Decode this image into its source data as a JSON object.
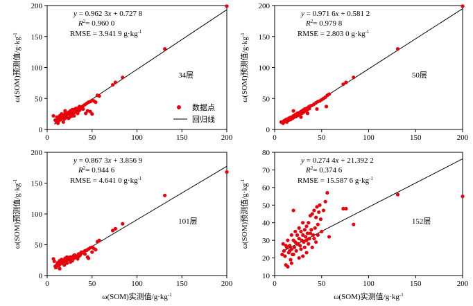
{
  "chart_data": [
    {
      "type": "scatter",
      "equation": "y = 0.962 3x + 0.727 8",
      "r2": "R2= 0.960 0",
      "rmse": "RMSE = 3.941 9 g·kg-1",
      "layer_label": "34层",
      "ylabel": "ω(SOM)预测值/g·kg-1",
      "xlabel": "",
      "xlim": [
        0,
        200
      ],
      "ylim": [
        0,
        200
      ],
      "xticks": [
        "0",
        "50",
        "100",
        "150",
        "200"
      ],
      "yticks": [
        "0",
        "50",
        "100",
        "150",
        "200"
      ],
      "legend": {
        "points": "数据点",
        "line": "回归线"
      },
      "fit": {
        "slope": 0.9623,
        "intercept": 0.7278
      },
      "points": [
        [
          7,
          22
        ],
        [
          9,
          15
        ],
        [
          10,
          13
        ],
        [
          11,
          20
        ],
        [
          12,
          18
        ],
        [
          13,
          14
        ],
        [
          14,
          22
        ],
        [
          15,
          16
        ],
        [
          16,
          25
        ],
        [
          17,
          20
        ],
        [
          18,
          23
        ],
        [
          19,
          17
        ],
        [
          20,
          27
        ],
        [
          21,
          22
        ],
        [
          22,
          19
        ],
        [
          23,
          26
        ],
        [
          24,
          28
        ],
        [
          25,
          24
        ],
        [
          26,
          30
        ],
        [
          27,
          25
        ],
        [
          28,
          22
        ],
        [
          29,
          31
        ],
        [
          30,
          27
        ],
        [
          31,
          33
        ],
        [
          32,
          29
        ],
        [
          33,
          30
        ],
        [
          34,
          26
        ],
        [
          35,
          35
        ],
        [
          36,
          31
        ],
        [
          37,
          33
        ],
        [
          38,
          36
        ],
        [
          40,
          38
        ],
        [
          42,
          40
        ],
        [
          44,
          42
        ],
        [
          45,
          30
        ],
        [
          46,
          44
        ],
        [
          48,
          45
        ],
        [
          50,
          47
        ],
        [
          52,
          46
        ],
        [
          54,
          44
        ],
        [
          56,
          55
        ],
        [
          58,
          54
        ],
        [
          73,
          72
        ],
        [
          76,
          76
        ],
        [
          84,
          84
        ],
        [
          131,
          130
        ],
        [
          200,
          199
        ],
        [
          12,
          10
        ],
        [
          15,
          21
        ],
        [
          18,
          12
        ],
        [
          20,
          30
        ],
        [
          22,
          24
        ],
        [
          24,
          18
        ],
        [
          26,
          21
        ],
        [
          28,
          32
        ],
        [
          30,
          22
        ],
        [
          32,
          34
        ],
        [
          34,
          28
        ],
        [
          36,
          37
        ],
        [
          40,
          33
        ],
        [
          43,
          26
        ],
        [
          48,
          29
        ],
        [
          50,
          25
        ]
      ]
    },
    {
      "type": "scatter",
      "equation": "y = 0.971 6x + 0.581 2",
      "r2": "R2= 0.979 8",
      "rmse": "RMSE = 2.803 0 g·kg-1",
      "layer_label": "50层",
      "ylabel": "ω(SOM)预测值/g·kg-1",
      "xlabel": "",
      "xlim": [
        0,
        200
      ],
      "ylim": [
        0,
        200
      ],
      "xticks": [
        "0",
        "50",
        "100",
        "150",
        "200"
      ],
      "yticks": [
        "0",
        "50",
        "100",
        "150",
        "200"
      ],
      "fit": {
        "slope": 0.9716,
        "intercept": 0.5812
      },
      "points": [
        [
          7,
          12
        ],
        [
          9,
          10
        ],
        [
          10,
          14
        ],
        [
          11,
          13
        ],
        [
          12,
          16
        ],
        [
          13,
          12
        ],
        [
          14,
          17
        ],
        [
          15,
          15
        ],
        [
          16,
          19
        ],
        [
          17,
          16
        ],
        [
          18,
          20
        ],
        [
          19,
          18
        ],
        [
          20,
          22
        ],
        [
          21,
          20
        ],
        [
          22,
          24
        ],
        [
          23,
          21
        ],
        [
          24,
          26
        ],
        [
          25,
          23
        ],
        [
          26,
          27
        ],
        [
          27,
          25
        ],
        [
          28,
          29
        ],
        [
          29,
          26
        ],
        [
          30,
          31
        ],
        [
          31,
          28
        ],
        [
          32,
          33
        ],
        [
          33,
          30
        ],
        [
          34,
          34
        ],
        [
          35,
          32
        ],
        [
          36,
          36
        ],
        [
          37,
          34
        ],
        [
          38,
          38
        ],
        [
          40,
          39
        ],
        [
          42,
          41
        ],
        [
          44,
          43
        ],
        [
          46,
          45
        ],
        [
          48,
          46
        ],
        [
          50,
          48
        ],
        [
          52,
          50
        ],
        [
          54,
          52
        ],
        [
          55,
          37
        ],
        [
          56,
          55
        ],
        [
          58,
          57
        ],
        [
          73,
          73
        ],
        [
          76,
          76
        ],
        [
          84,
          84
        ],
        [
          131,
          130
        ],
        [
          200,
          199
        ],
        [
          20,
          30
        ],
        [
          28,
          20
        ],
        [
          35,
          26
        ],
        [
          45,
          33
        ]
      ]
    },
    {
      "type": "scatter",
      "equation": "y = 0.867 3x + 3.856 9",
      "r2": "R2= 0.944 6",
      "rmse": "RMSE = 4.641 0 g·kg-1",
      "layer_label": "101层",
      "ylabel": "ω(SOM)预测值/g·kg-1",
      "xlabel": "ω(SOM)实测值/g·kg-1",
      "xlim": [
        0,
        200
      ],
      "ylim": [
        0,
        200
      ],
      "xticks": [
        "0",
        "50",
        "100",
        "150",
        "200"
      ],
      "yticks": [
        "0",
        "50",
        "100",
        "150",
        "200"
      ],
      "fit": {
        "slope": 0.8673,
        "intercept": 3.8569
      },
      "points": [
        [
          7,
          27
        ],
        [
          8,
          23
        ],
        [
          9,
          15
        ],
        [
          10,
          13
        ],
        [
          11,
          18
        ],
        [
          12,
          21
        ],
        [
          13,
          16
        ],
        [
          14,
          24
        ],
        [
          15,
          19
        ],
        [
          16,
          26
        ],
        [
          17,
          21
        ],
        [
          18,
          23
        ],
        [
          19,
          17
        ],
        [
          20,
          28
        ],
        [
          21,
          23
        ],
        [
          22,
          20
        ],
        [
          23,
          27
        ],
        [
          24,
          29
        ],
        [
          25,
          25
        ],
        [
          26,
          30
        ],
        [
          27,
          26
        ],
        [
          28,
          24
        ],
        [
          29,
          31
        ],
        [
          30,
          28
        ],
        [
          31,
          33
        ],
        [
          32,
          30
        ],
        [
          33,
          31
        ],
        [
          34,
          27
        ],
        [
          35,
          35
        ],
        [
          36,
          32
        ],
        [
          37,
          34
        ],
        [
          38,
          36
        ],
        [
          40,
          38
        ],
        [
          42,
          40
        ],
        [
          44,
          41
        ],
        [
          45,
          30
        ],
        [
          46,
          43
        ],
        [
          48,
          45
        ],
        [
          50,
          46
        ],
        [
          52,
          44
        ],
        [
          54,
          42
        ],
        [
          56,
          55
        ],
        [
          58,
          57
        ],
        [
          73,
          73
        ],
        [
          76,
          76
        ],
        [
          84,
          84
        ],
        [
          131,
          130
        ],
        [
          200,
          168
        ],
        [
          14,
          11
        ],
        [
          18,
          25
        ],
        [
          22,
          30
        ],
        [
          26,
          22
        ],
        [
          30,
          33
        ],
        [
          34,
          29
        ],
        [
          38,
          38
        ],
        [
          42,
          35
        ],
        [
          46,
          28
        ],
        [
          50,
          38
        ]
      ]
    },
    {
      "type": "scatter",
      "equation": "y = 0.274 4x + 21.392 2",
      "r2": "R2= 0.374 6",
      "rmse": "RMSE = 15.587 6 g·kg-1",
      "layer_label": "152层",
      "ylabel": "ω(SOM)预测值/g·kg-1",
      "xlabel": "ω(SOM)实测值/g·kg-1",
      "xlim": [
        0,
        200
      ],
      "ylim": [
        10,
        80
      ],
      "xticks": [
        "0",
        "50",
        "100",
        "150",
        "200"
      ],
      "yticks": [
        "10",
        "20",
        "30",
        "40",
        "50",
        "60",
        "70",
        "80"
      ],
      "fit": {
        "slope": 0.2744,
        "intercept": 21.3922
      },
      "points": [
        [
          8,
          22
        ],
        [
          9,
          28
        ],
        [
          10,
          24
        ],
        [
          11,
          21
        ],
        [
          12,
          16
        ],
        [
          13,
          26
        ],
        [
          14,
          15
        ],
        [
          15,
          23
        ],
        [
          16,
          27
        ],
        [
          17,
          19
        ],
        [
          18,
          25
        ],
        [
          19,
          22
        ],
        [
          20,
          30
        ],
        [
          21,
          26
        ],
        [
          22,
          29
        ],
        [
          23,
          24
        ],
        [
          24,
          33
        ],
        [
          25,
          28
        ],
        [
          26,
          31
        ],
        [
          27,
          27
        ],
        [
          28,
          35
        ],
        [
          29,
          30
        ],
        [
          30,
          33
        ],
        [
          31,
          29
        ],
        [
          32,
          36
        ],
        [
          33,
          32
        ],
        [
          34,
          38
        ],
        [
          35,
          34
        ],
        [
          36,
          40
        ],
        [
          37,
          31
        ],
        [
          38,
          44
        ],
        [
          39,
          36
        ],
        [
          40,
          45
        ],
        [
          41,
          33
        ],
        [
          42,
          47
        ],
        [
          43,
          37
        ],
        [
          44,
          43
        ],
        [
          45,
          49
        ],
        [
          46,
          39
        ],
        [
          47,
          46
        ],
        [
          48,
          50
        ],
        [
          49,
          42
        ],
        [
          50,
          35
        ],
        [
          52,
          47
        ],
        [
          54,
          52
        ],
        [
          56,
          57
        ],
        [
          58,
          32
        ],
        [
          73,
          48
        ],
        [
          76,
          48
        ],
        [
          84,
          39
        ],
        [
          131,
          56
        ],
        [
          200,
          55
        ],
        [
          12,
          27
        ],
        [
          14,
          30
        ],
        [
          16,
          24
        ],
        [
          18,
          33
        ],
        [
          20,
          22
        ],
        [
          22,
          35
        ],
        [
          24,
          28
        ],
        [
          26,
          37
        ],
        [
          28,
          25
        ],
        [
          30,
          40
        ],
        [
          32,
          26
        ],
        [
          34,
          30
        ],
        [
          36,
          28
        ],
        [
          38,
          34
        ],
        [
          40,
          26
        ],
        [
          42,
          31
        ],
        [
          44,
          29
        ],
        [
          46,
          33
        ],
        [
          20,
          47
        ],
        [
          18,
          17
        ],
        [
          26,
          20
        ],
        [
          30,
          21
        ],
        [
          34,
          23
        ]
      ]
    }
  ]
}
